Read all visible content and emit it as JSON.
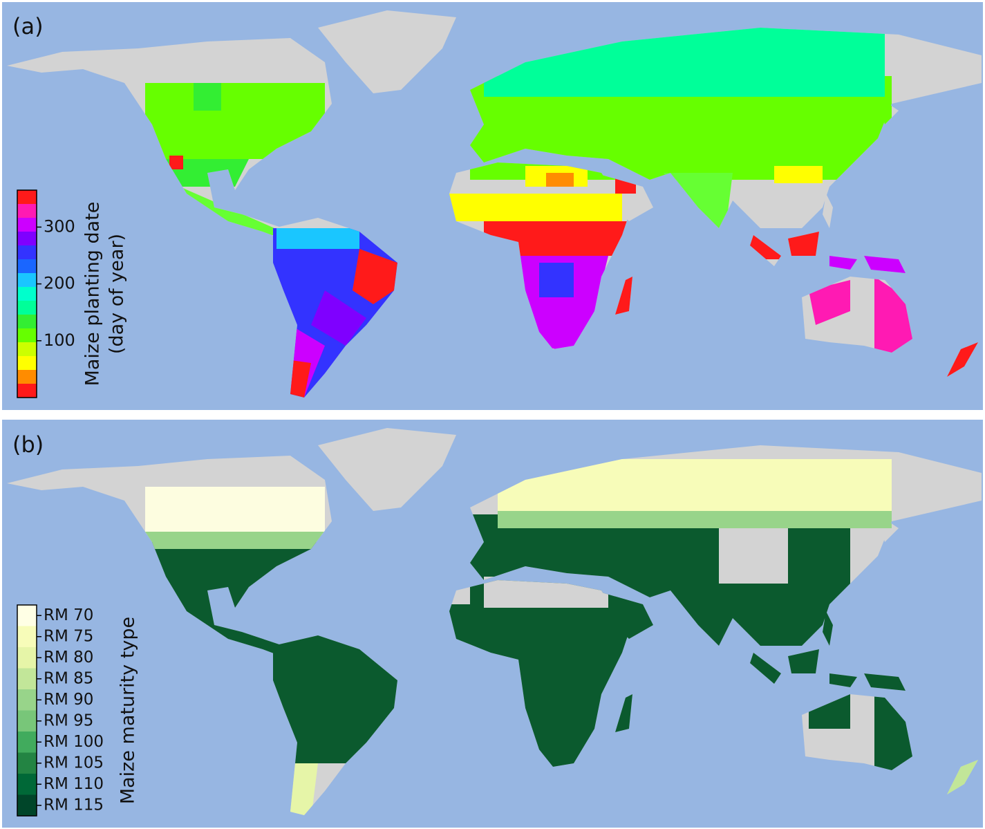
{
  "panels": [
    {
      "label": "(a)",
      "colorbar": {
        "label": [
          "Maize planting date",
          "(day of year)"
        ],
        "lim": [
          0,
          365
        ],
        "ticks": [
          100,
          200,
          300
        ],
        "colors": [
          "#ff1a1a",
          "#ff8c00",
          "#ffff00",
          "#ccff00",
          "#66ff00",
          "#33ee33",
          "#00ff99",
          "#00ffcc",
          "#1ac6ff",
          "#1a66ff",
          "#3333ff",
          "#7f00ff",
          "#cc00ff",
          "#ff1ab3",
          "#ff1a1a"
        ]
      }
    },
    {
      "label": "(b)",
      "colorbar": {
        "label": "Maize maturity type",
        "categories": [
          "RM 70",
          "RM 75",
          "RM 80",
          "RM 85",
          "RM 90",
          "RM 95",
          "RM 100",
          "RM 105",
          "RM 110",
          "RM 115"
        ],
        "colors": [
          "#ffffe5",
          "#f7fcb9",
          "#e6f5a8",
          "#c2e699",
          "#98d48a",
          "#78c679",
          "#41ab5d",
          "#238443",
          "#006837",
          "#004529"
        ]
      }
    }
  ]
}
